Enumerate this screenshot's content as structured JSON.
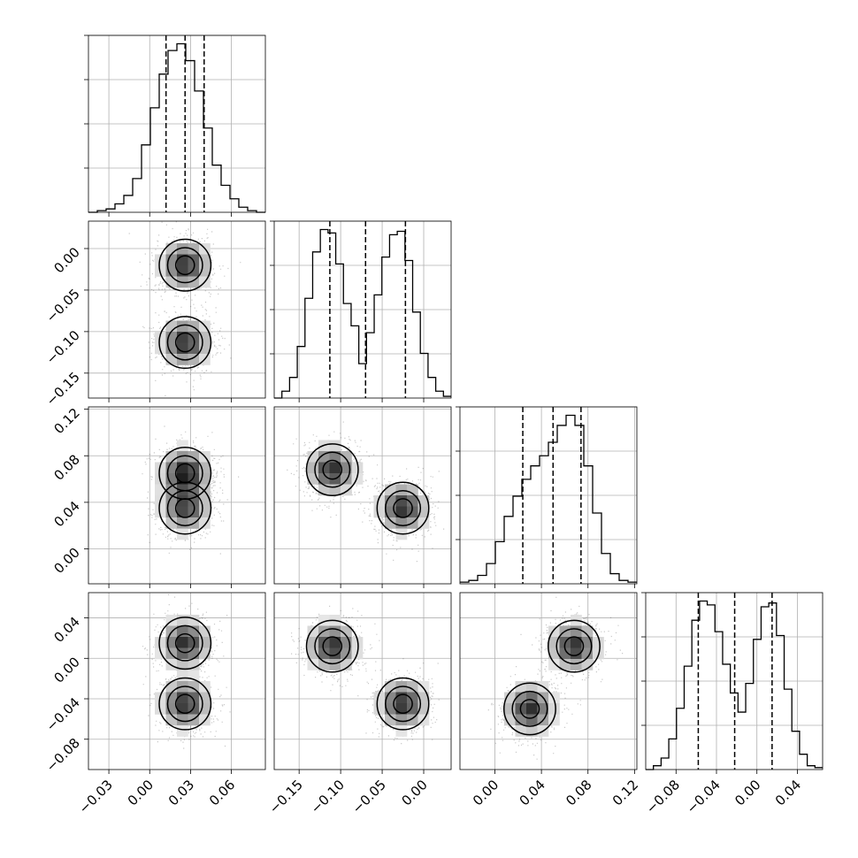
{
  "chart_data": {
    "type": "corner",
    "grid": true,
    "variables": [
      {
        "axis_range": [
          -0.045,
          0.085
        ],
        "ticks": [
          -0.03,
          0.0,
          0.03,
          0.06
        ],
        "tick_labels": [
          "−0.03",
          "0.00",
          "0.03",
          "0.06"
        ],
        "quantiles": [
          0.012,
          0.026,
          0.04
        ]
      },
      {
        "axis_range": [
          -0.18,
          0.033
        ],
        "ticks": [
          -0.15,
          -0.1,
          -0.05,
          0.0
        ],
        "tick_labels": [
          "−0.15",
          "−0.10",
          "−0.05",
          "0.00"
        ],
        "quantiles": [
          -0.113,
          -0.07,
          -0.022
        ]
      },
      {
        "axis_range": [
          -0.03,
          0.122
        ],
        "ticks": [
          0.0,
          0.04,
          0.08,
          0.12
        ],
        "tick_labels": [
          "0.00",
          "0.04",
          "0.08",
          "0.12"
        ],
        "quantiles": [
          0.024,
          0.05,
          0.074
        ]
      },
      {
        "axis_range": [
          -0.11,
          0.065
        ],
        "ticks": [
          -0.08,
          -0.04,
          0.0,
          0.04
        ],
        "tick_labels": [
          "−0.08",
          "−0.04",
          "0.00",
          "0.04"
        ],
        "quantiles": [
          -0.058,
          -0.022,
          0.015
        ]
      }
    ],
    "histograms": [
      {
        "variable": 0,
        "bin_edges_range": [
          -0.045,
          0.085
        ],
        "counts": [
          0,
          1,
          2,
          5,
          10,
          20,
          40,
          62,
          82,
          96,
          100,
          90,
          72,
          50,
          28,
          16,
          8,
          3,
          1,
          0
        ]
      },
      {
        "variable": 1,
        "bin_edges_range": [
          -0.18,
          0.033
        ],
        "counts": [
          0,
          4,
          12,
          30,
          58,
          85,
          98,
          96,
          78,
          55,
          42,
          20,
          38,
          60,
          82,
          95,
          97,
          80,
          50,
          26,
          12,
          4,
          1
        ]
      },
      {
        "variable": 2,
        "bin_edges_range": [
          -0.03,
          0.122
        ],
        "counts": [
          1,
          2,
          5,
          12,
          25,
          40,
          52,
          62,
          70,
          76,
          84,
          94,
          100,
          94,
          70,
          42,
          18,
          6,
          2,
          1
        ]
      },
      {
        "variable": 3,
        "bin_edges_range": [
          -0.11,
          0.065
        ],
        "counts": [
          0,
          2,
          6,
          16,
          32,
          54,
          78,
          88,
          86,
          72,
          55,
          40,
          30,
          45,
          68,
          85,
          87,
          70,
          42,
          20,
          8,
          2,
          1
        ]
      }
    ],
    "joint_distributions": [
      {
        "x": 0,
        "y": 1,
        "modes": [
          {
            "x": 0.026,
            "y": -0.02,
            "weight": 0.5
          },
          {
            "x": 0.026,
            "y": -0.113,
            "weight": 0.5
          }
        ]
      },
      {
        "x": 0,
        "y": 2,
        "modes": [
          {
            "x": 0.026,
            "y": 0.065,
            "weight": 0.55
          },
          {
            "x": 0.026,
            "y": 0.035,
            "weight": 0.45
          }
        ]
      },
      {
        "x": 1,
        "y": 2,
        "modes": [
          {
            "x": -0.11,
            "y": 0.068,
            "weight": 0.5
          },
          {
            "x": -0.025,
            "y": 0.035,
            "weight": 0.5
          }
        ]
      },
      {
        "x": 0,
        "y": 3,
        "modes": [
          {
            "x": 0.026,
            "y": 0.015,
            "weight": 0.5
          },
          {
            "x": 0.026,
            "y": -0.045,
            "weight": 0.5
          }
        ]
      },
      {
        "x": 1,
        "y": 3,
        "modes": [
          {
            "x": -0.11,
            "y": 0.012,
            "weight": 0.5
          },
          {
            "x": -0.025,
            "y": -0.045,
            "weight": 0.5
          }
        ]
      },
      {
        "x": 2,
        "y": 3,
        "modes": [
          {
            "x": 0.068,
            "y": 0.012,
            "weight": 0.5
          },
          {
            "x": 0.03,
            "y": -0.05,
            "weight": 0.5
          }
        ]
      }
    ]
  }
}
